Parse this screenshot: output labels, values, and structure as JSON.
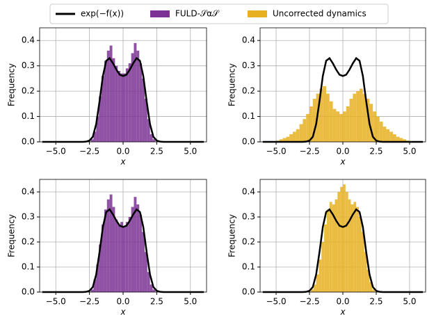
{
  "chart_data": [
    {
      "type": "histogram",
      "xlabel": "x",
      "ylabel": "Frequency",
      "xlim": [
        -6.2,
        6.2
      ],
      "ylim": [
        0,
        0.45
      ],
      "xticks": [
        {
          "value": -5,
          "label": "−5.0"
        },
        {
          "value": -2.5,
          "label": "−2.5"
        },
        {
          "value": 0,
          "label": "0.0"
        },
        {
          "value": 2.5,
          "label": "2.5"
        },
        {
          "value": 5,
          "label": "5.0"
        }
      ],
      "yticks": [
        {
          "value": 0,
          "label": "0.0"
        },
        {
          "value": 0.1,
          "label": "0.1"
        },
        {
          "value": 0.2,
          "label": "0.2"
        },
        {
          "value": 0.3,
          "label": "0.3"
        },
        {
          "value": 0.4,
          "label": "0.4"
        }
      ],
      "grid": true,
      "bins": [
        -2.4,
        -2.2,
        -2.0,
        -1.8,
        -1.6,
        -1.4,
        -1.2,
        -1.0,
        -0.8,
        -0.6,
        -0.4,
        -0.2,
        0,
        0.2,
        0.4,
        0.6,
        0.8,
        1.0,
        1.2,
        1.4,
        1.6,
        1.8,
        2.0,
        2.2,
        2.4
      ],
      "series": [
        {
          "name": "FULD-𝒮α𝒮",
          "color": "#7b3294",
          "values": [
            0.01,
            0.04,
            0.1,
            0.18,
            0.26,
            0.32,
            0.36,
            0.38,
            0.33,
            0.3,
            0.28,
            0.27,
            0.27,
            0.29,
            0.31,
            0.35,
            0.39,
            0.36,
            0.31,
            0.25,
            0.17,
            0.09,
            0.03,
            0.01
          ]
        }
      ],
      "line": {
        "name": "exp(−f(x))",
        "color": "#000000",
        "x": [
          -6,
          -3,
          -2.75,
          -2.5,
          -2.25,
          -2,
          -1.75,
          -1.5,
          -1.25,
          -1,
          -0.75,
          -0.5,
          -0.25,
          0,
          0.25,
          0.5,
          0.75,
          1,
          1.25,
          1.5,
          1.75,
          2,
          2.25,
          2.5,
          2.75,
          3,
          6
        ],
        "values": [
          0,
          0,
          0.001,
          0.005,
          0.02,
          0.07,
          0.16,
          0.26,
          0.32,
          0.33,
          0.31,
          0.285,
          0.265,
          0.26,
          0.265,
          0.285,
          0.31,
          0.33,
          0.32,
          0.26,
          0.16,
          0.07,
          0.02,
          0.005,
          0.001,
          0,
          0
        ]
      }
    },
    {
      "type": "histogram",
      "xlabel": "x",
      "ylabel": "Frequency",
      "xlim": [
        -6.2,
        6.2
      ],
      "ylim": [
        0,
        0.45
      ],
      "xticks": [
        {
          "value": -5,
          "label": "−5.0"
        },
        {
          "value": -2.5,
          "label": "−2.5"
        },
        {
          "value": 0,
          "label": "0.0"
        },
        {
          "value": 2.5,
          "label": "2.5"
        },
        {
          "value": 5,
          "label": "5.0"
        }
      ],
      "yticks": [
        {
          "value": 0,
          "label": "0.0"
        },
        {
          "value": 0.1,
          "label": "0.1"
        },
        {
          "value": 0.2,
          "label": "0.2"
        },
        {
          "value": 0.3,
          "label": "0.3"
        },
        {
          "value": 0.4,
          "label": "0.4"
        }
      ],
      "grid": true,
      "bins": [
        -5,
        -4.75,
        -4.5,
        -4.25,
        -4,
        -3.75,
        -3.5,
        -3.25,
        -3,
        -2.75,
        -2.5,
        -2.25,
        -2,
        -1.75,
        -1.5,
        -1.25,
        -1,
        -0.75,
        -0.5,
        -0.25,
        0,
        0.25,
        0.5,
        0.75,
        1,
        1.25,
        1.5,
        1.75,
        2,
        2.25,
        2.5,
        2.75,
        3,
        3.25,
        3.5,
        3.75,
        4,
        4.25,
        4.5,
        4.75,
        5
      ],
      "series": [
        {
          "name": "Uncorrected dynamics",
          "color": "#e6b020",
          "values": [
            0.005,
            0.01,
            0.015,
            0.02,
            0.03,
            0.04,
            0.05,
            0.07,
            0.09,
            0.11,
            0.14,
            0.17,
            0.19,
            0.21,
            0.22,
            0.19,
            0.16,
            0.13,
            0.12,
            0.11,
            0.12,
            0.14,
            0.17,
            0.19,
            0.2,
            0.21,
            0.19,
            0.17,
            0.15,
            0.12,
            0.1,
            0.08,
            0.06,
            0.05,
            0.04,
            0.03,
            0.02,
            0.015,
            0.01,
            0.005
          ]
        }
      ],
      "line": {
        "color": "#000000",
        "x": [
          -6,
          -3,
          -2.75,
          -2.5,
          -2.25,
          -2,
          -1.75,
          -1.5,
          -1.25,
          -1,
          -0.75,
          -0.5,
          -0.25,
          0,
          0.25,
          0.5,
          0.75,
          1,
          1.25,
          1.5,
          1.75,
          2,
          2.25,
          2.5,
          2.75,
          3,
          6
        ],
        "values": [
          0,
          0,
          0.001,
          0.005,
          0.02,
          0.07,
          0.16,
          0.26,
          0.32,
          0.33,
          0.31,
          0.285,
          0.265,
          0.26,
          0.265,
          0.285,
          0.31,
          0.33,
          0.32,
          0.26,
          0.16,
          0.07,
          0.02,
          0.005,
          0.001,
          0,
          0
        ]
      }
    },
    {
      "type": "histogram",
      "xlabel": "x",
      "ylabel": "Frequency",
      "xlim": [
        -6.2,
        6.2
      ],
      "ylim": [
        0,
        0.45
      ],
      "xticks": [
        {
          "value": -5,
          "label": "−5.0"
        },
        {
          "value": -2.5,
          "label": "−2.5"
        },
        {
          "value": 0,
          "label": "0.0"
        },
        {
          "value": 2.5,
          "label": "2.5"
        },
        {
          "value": 5,
          "label": "5.0"
        }
      ],
      "yticks": [
        {
          "value": 0,
          "label": "0.0"
        },
        {
          "value": 0.1,
          "label": "0.1"
        },
        {
          "value": 0.2,
          "label": "0.2"
        },
        {
          "value": 0.3,
          "label": "0.3"
        },
        {
          "value": 0.4,
          "label": "0.4"
        }
      ],
      "grid": true,
      "bins": [
        -2.4,
        -2.2,
        -2.0,
        -1.8,
        -1.6,
        -1.4,
        -1.2,
        -1.0,
        -0.8,
        -0.6,
        -0.4,
        -0.2,
        0,
        0.2,
        0.4,
        0.6,
        0.8,
        1.0,
        1.2,
        1.4,
        1.6,
        1.8,
        2.0,
        2.2,
        2.4
      ],
      "series": [
        {
          "color": "#7b3294",
          "values": [
            0.01,
            0.05,
            0.11,
            0.19,
            0.27,
            0.33,
            0.37,
            0.39,
            0.34,
            0.29,
            0.27,
            0.28,
            0.26,
            0.28,
            0.3,
            0.34,
            0.38,
            0.35,
            0.31,
            0.24,
            0.16,
            0.08,
            0.03,
            0.01
          ]
        }
      ],
      "line": {
        "color": "#000000",
        "x": [
          -6,
          -3,
          -2.75,
          -2.5,
          -2.25,
          -2,
          -1.75,
          -1.5,
          -1.25,
          -1,
          -0.75,
          -0.5,
          -0.25,
          0,
          0.25,
          0.5,
          0.75,
          1,
          1.25,
          1.5,
          1.75,
          2,
          2.25,
          2.5,
          2.75,
          3,
          6
        ],
        "values": [
          0,
          0,
          0.001,
          0.005,
          0.02,
          0.07,
          0.16,
          0.26,
          0.32,
          0.33,
          0.31,
          0.285,
          0.265,
          0.26,
          0.265,
          0.285,
          0.31,
          0.33,
          0.32,
          0.26,
          0.16,
          0.07,
          0.02,
          0.005,
          0.001,
          0,
          0
        ]
      }
    },
    {
      "type": "histogram",
      "xlabel": "x",
      "ylabel": "Frequency",
      "xlim": [
        -6.2,
        6.2
      ],
      "ylim": [
        0,
        0.45
      ],
      "xticks": [
        {
          "value": -5,
          "label": "−5.0"
        },
        {
          "value": -2.5,
          "label": "−2.5"
        },
        {
          "value": 0,
          "label": "0.0"
        },
        {
          "value": 2.5,
          "label": "2.5"
        },
        {
          "value": 5,
          "label": "5.0"
        }
      ],
      "yticks": [
        {
          "value": 0,
          "label": "0.0"
        },
        {
          "value": 0.1,
          "label": "0.1"
        },
        {
          "value": 0.2,
          "label": "0.2"
        },
        {
          "value": 0.3,
          "label": "0.3"
        },
        {
          "value": 0.4,
          "label": "0.4"
        }
      ],
      "grid": true,
      "bins": [
        -2.4,
        -2.2,
        -2.0,
        -1.8,
        -1.6,
        -1.4,
        -1.2,
        -1.0,
        -0.8,
        -0.6,
        -0.4,
        -0.2,
        0,
        0.2,
        0.4,
        0.6,
        0.8,
        1.0,
        1.2,
        1.4,
        1.6,
        1.8,
        2.0,
        2.2,
        2.4
      ],
      "series": [
        {
          "color": "#e6b020",
          "values": [
            0.01,
            0.03,
            0.07,
            0.13,
            0.2,
            0.27,
            0.33,
            0.36,
            0.35,
            0.37,
            0.4,
            0.42,
            0.43,
            0.4,
            0.37,
            0.35,
            0.36,
            0.34,
            0.3,
            0.24,
            0.16,
            0.09,
            0.04,
            0.01
          ]
        }
      ],
      "line": {
        "color": "#000000",
        "x": [
          -6,
          -3,
          -2.75,
          -2.5,
          -2.25,
          -2,
          -1.75,
          -1.5,
          -1.25,
          -1,
          -0.75,
          -0.5,
          -0.25,
          0,
          0.25,
          0.5,
          0.75,
          1,
          1.25,
          1.5,
          1.75,
          2,
          2.25,
          2.5,
          2.75,
          3,
          6
        ],
        "values": [
          0,
          0,
          0.001,
          0.005,
          0.02,
          0.07,
          0.16,
          0.26,
          0.32,
          0.33,
          0.31,
          0.285,
          0.265,
          0.26,
          0.265,
          0.285,
          0.31,
          0.33,
          0.32,
          0.26,
          0.16,
          0.07,
          0.02,
          0.005,
          0.001,
          0,
          0
        ]
      }
    }
  ]
}
